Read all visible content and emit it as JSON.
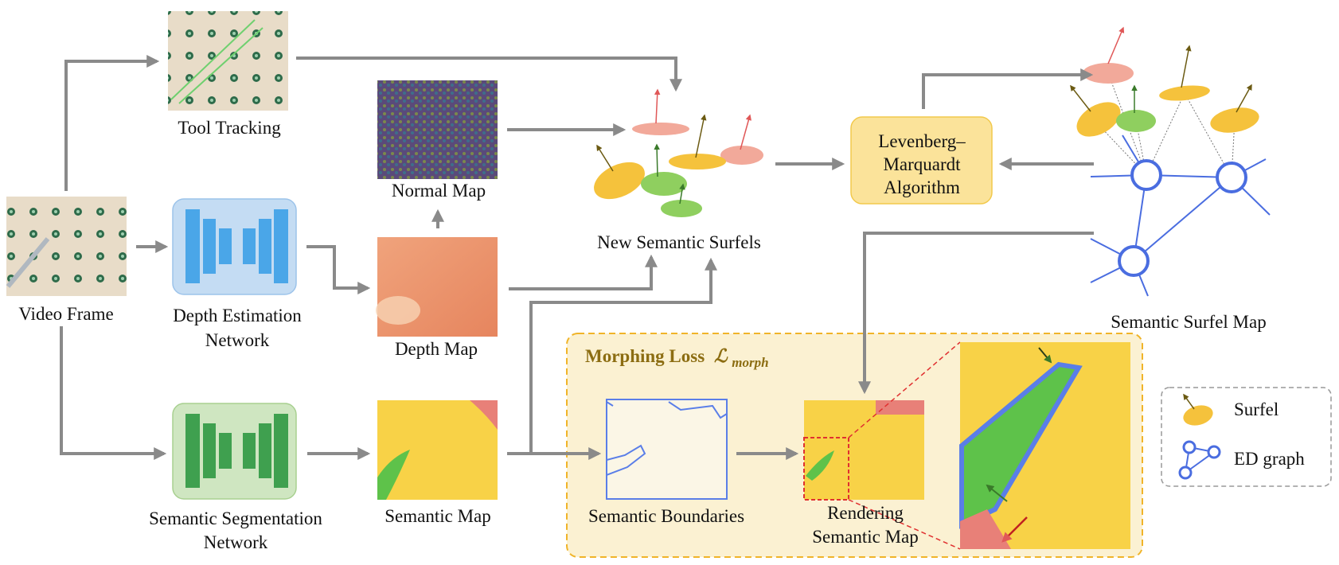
{
  "labels": {
    "video_frame": "Video Frame",
    "tool_tracking": "Tool Tracking",
    "depth_net_line1": "Depth Estimation",
    "depth_net_line2": "Network",
    "seg_net_line1": "Semantic Segmentation",
    "seg_net_line2": "Network",
    "normal_map": "Normal Map",
    "depth_map": "Depth Map",
    "semantic_map": "Semantic Map",
    "new_surfels": "New Semantic Surfels",
    "lm_line1": "Levenberg–",
    "lm_line2": "Marquardt",
    "lm_line3": "Algorithm",
    "surfel_map": "Semantic Surfel Map",
    "morph_title": "Morphing Loss",
    "morph_symbol": "ℒ",
    "morph_sub": "morph",
    "semantic_boundaries": "Semantic Boundaries",
    "render_line1": "Rendering",
    "render_line2": "Semantic Map",
    "legend_surfel": "Surfel",
    "legend_ed": "ED graph"
  },
  "colors": {
    "arrow": "#8a8a8a",
    "blue_net_fill": "#c4dcf3",
    "blue_net_block": "#4aa6e8",
    "green_net_fill": "#cfe6c1",
    "green_net_block": "#3fa04f",
    "lm_fill": "#fbe39a",
    "lm_stroke": "#f2c94c",
    "morph_fill": "#fbf1d2",
    "morph_stroke": "#f0b429",
    "morph_title": "#8c6d12",
    "semantic_yellow": "#f8d247",
    "semantic_green": "#5ec24a",
    "semantic_pink": "#e88078",
    "ed_blue": "#4a6de0",
    "surfel_yellow": "#f5c23c",
    "surfel_green": "#8fcf5f",
    "surfel_pink": "#f2a99a",
    "red_dash": "#e03030"
  }
}
